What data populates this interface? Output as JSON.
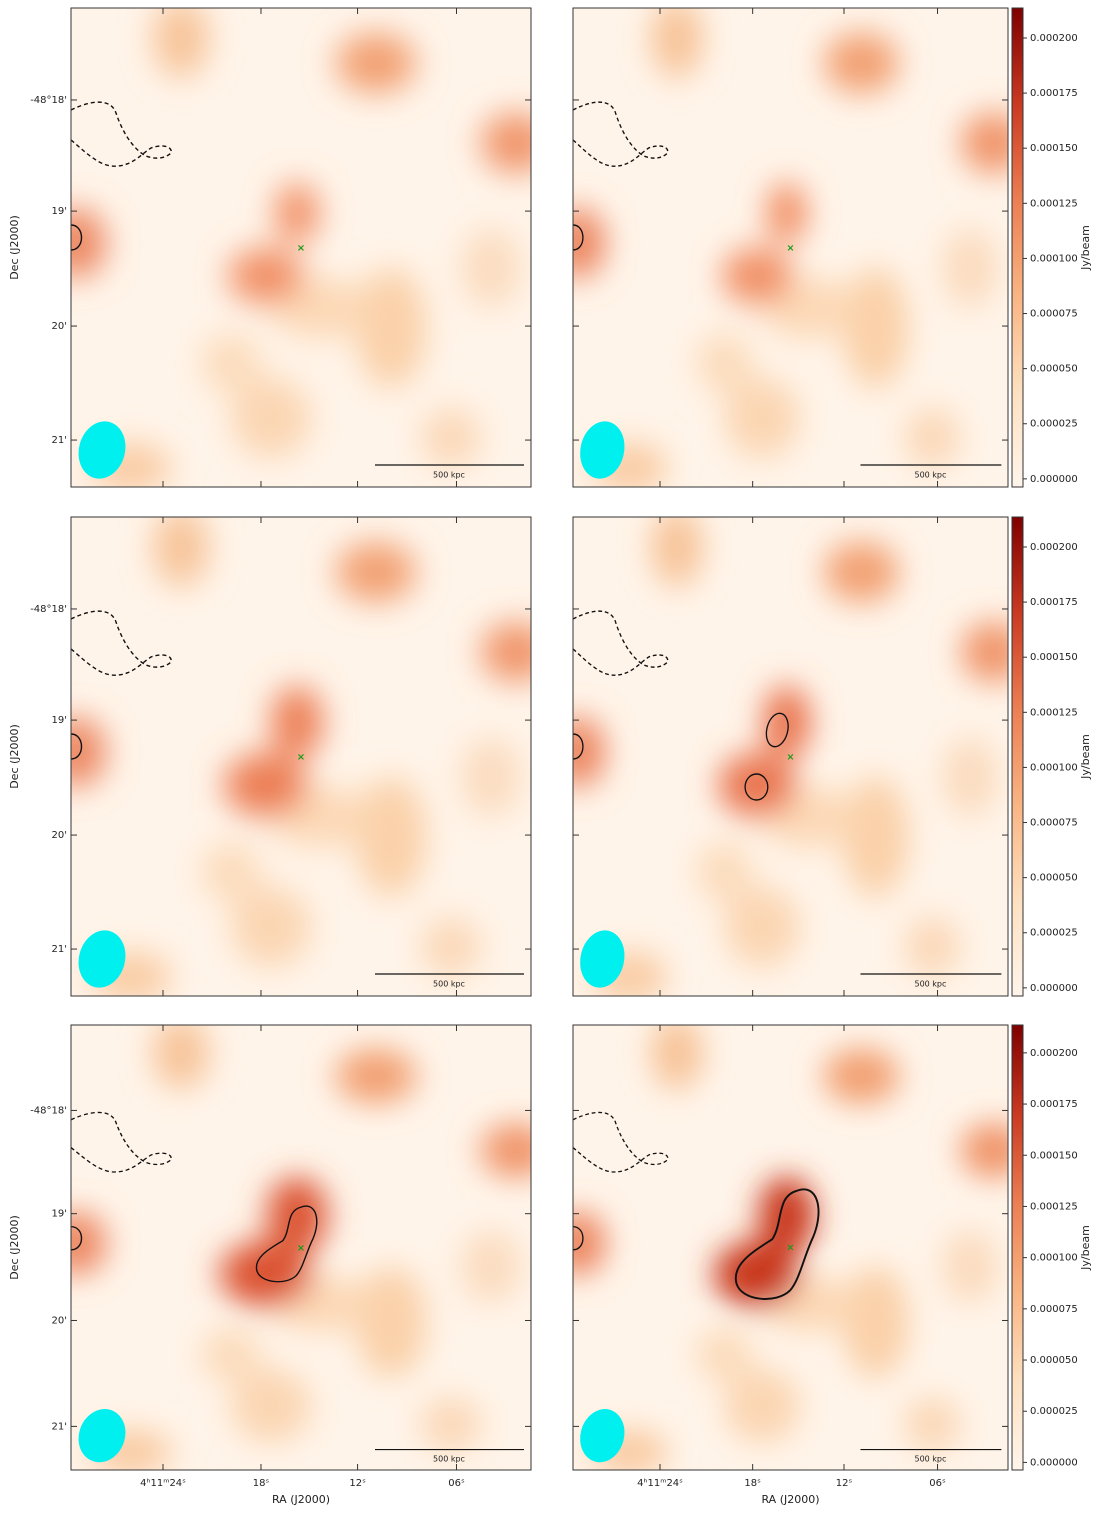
{
  "figure": {
    "y_axis": {
      "label": "Dec (J2000)",
      "ticks": [
        "-48°18'",
        "19'",
        "20'",
        "21'"
      ]
    },
    "x_axis": {
      "label": "RA (J2000)",
      "ticks": [
        "4ʰ11ᵐ24ˢ",
        "18ˢ",
        "12ˢ",
        "06ˢ"
      ]
    },
    "colorbar": {
      "label": "Jy/beam",
      "ticks": [
        "0.000200",
        "0.000175",
        "0.000150",
        "0.000125",
        "0.000100",
        "0.000075",
        "0.000050",
        "0.000025",
        "0.000000"
      ]
    },
    "scale_bar": "500 kpc"
  }
}
